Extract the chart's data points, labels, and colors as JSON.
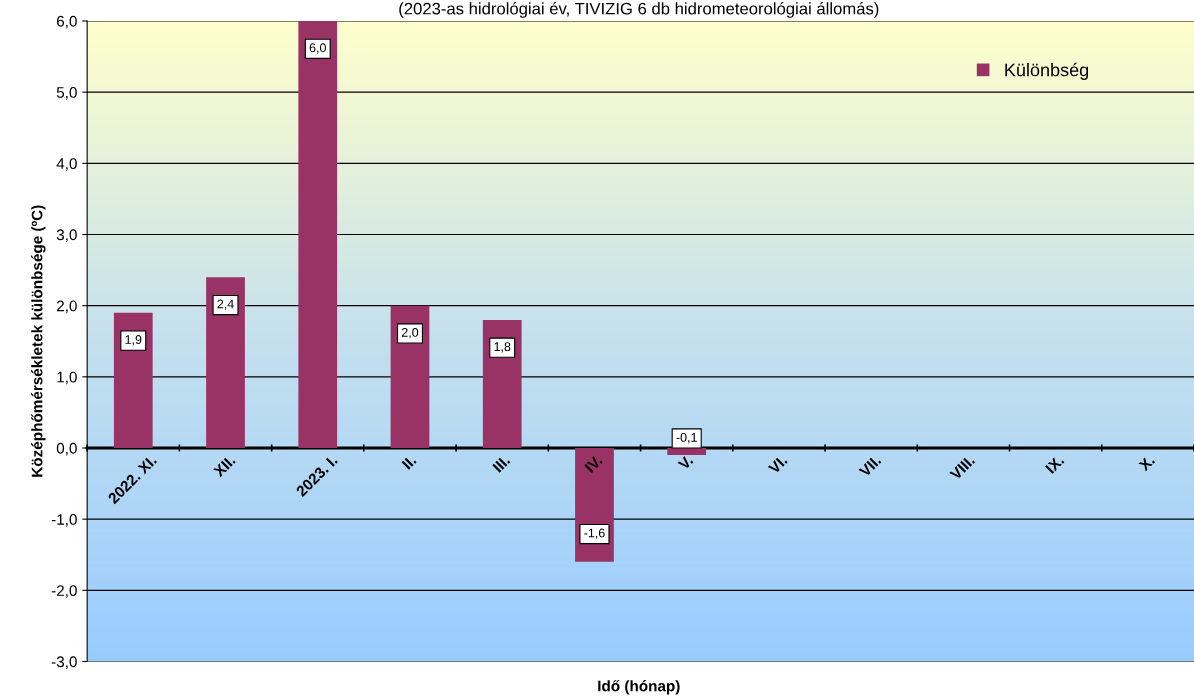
{
  "chart_data": {
    "type": "bar",
    "subtitle": "(2023-as hidrológiai év, TIVIZIG 6 db hidrometeorológiai állomás)",
    "xlabel": "Idő (hónap)",
    "ylabel": "Középhőmérsékletek különbsége (ºC)",
    "categories": [
      "2022. XI.",
      "XII.",
      "2023. I.",
      "II.",
      "III.",
      "IV.",
      "V.",
      "VI.",
      "VII.",
      "VIII.",
      "IX.",
      "X."
    ],
    "series": [
      {
        "name": "Különbség",
        "color": "#993366",
        "values": [
          1.9,
          2.4,
          6.0,
          2.0,
          1.8,
          -1.6,
          -0.1,
          null,
          null,
          null,
          null,
          null
        ],
        "value_labels": [
          "1,9",
          "2,4",
          "6,0",
          "2,0",
          "1,8",
          "-1,6",
          "-0,1",
          null,
          null,
          null,
          null,
          null
        ]
      }
    ],
    "ylim": [
      -3,
      6
    ],
    "yticks": [
      {
        "value": -3,
        "label": "-3,0"
      },
      {
        "value": -2,
        "label": "-2,0"
      },
      {
        "value": -1,
        "label": "-1,0"
      },
      {
        "value": 0,
        "label": "0,0"
      },
      {
        "value": 1,
        "label": "1,0"
      },
      {
        "value": 2,
        "label": "2,0"
      },
      {
        "value": 3,
        "label": "3,0"
      },
      {
        "value": 4,
        "label": "4,0"
      },
      {
        "value": 5,
        "label": "5,0"
      },
      {
        "value": 6,
        "label": "6,0"
      }
    ],
    "grid": "y",
    "legend": "top right"
  }
}
